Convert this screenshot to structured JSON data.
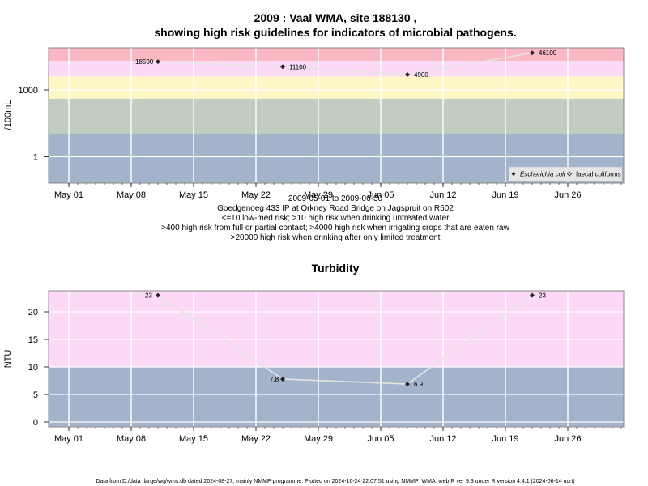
{
  "header": {
    "title_line1": "2009 : Vaal WMA, site 188130 ,",
    "title_line2": "showing high risk guidelines for indicators of microbial pathogens."
  },
  "caption": {
    "lines": [
      "2009-05-01 to 2009-06-30",
      "Goedgenoeg 433 IP at Orkney Road Bridge on Jagspruit on R502",
      "<=10 low-med risk; >10 high risk when drinking untreated water",
      ">400 high risk from full or partial contact; >4000 high risk when irrigating crops that are eaten raw",
      ">20000 high risk when drinking after only limited treatment"
    ]
  },
  "footer": {
    "text": "Data from D:/data_large/wq/wms.db dated 2024-08-27, mainly NMMP programme. Plotted on 2024-10-24 22:07:51 using NMMP_WMA_web.R ver 9.3 under R version 4.4.1 (2024-06-14 ucrt)"
  },
  "colors": {
    "band_red": "#f9b8c2",
    "band_pink": "#fcd9f7",
    "band_yellow": "#fdf7c5",
    "band_grey": "#c2cdc2",
    "band_blue": "#a3b3cb",
    "grid": "#ffffff",
    "line": "#e4e4e4",
    "point": "#222222"
  },
  "chart_data": [
    {
      "type": "line",
      "title": "",
      "ylabel": "/100mL",
      "y_scale": "log",
      "x_tick_labels": [
        "May 01",
        "May 08",
        "May 15",
        "May 22",
        "May 29",
        "Jun 05",
        "Jun 12",
        "Jun 19",
        "Jun 26"
      ],
      "x_tick_dates": [
        "2009-05-01",
        "2009-05-08",
        "2009-05-15",
        "2009-05-22",
        "2009-05-29",
        "2009-06-05",
        "2009-06-12",
        "2009-06-19",
        "2009-06-26"
      ],
      "y_tick_labels": [
        "1",
        "1000"
      ],
      "y_tick_values": [
        1,
        1000
      ],
      "risk_bands": [
        {
          "from": 20000,
          "to": 100000,
          "color": "#f9b8c2"
        },
        {
          "from": 4000,
          "to": 20000,
          "color": "#fcd9f7"
        },
        {
          "from": 400,
          "to": 4000,
          "color": "#fdf7c5"
        },
        {
          "from": 10,
          "to": 400,
          "color": "#c2cdc2"
        },
        {
          "from": 0.05,
          "to": 10,
          "color": "#a3b3cb"
        }
      ],
      "series": [
        {
          "name": "Escherichia coli",
          "marker": "filled-diamond",
          "x": [
            "2009-05-11",
            "2009-05-25",
            "2009-06-08",
            "2009-06-22"
          ],
          "y": [
            18500,
            11100,
            4900,
            46100
          ],
          "labels": [
            "18500",
            "11100",
            "4900",
            "46100"
          ]
        },
        {
          "name": "faecal coliforms",
          "marker": "open-diamond",
          "x": [],
          "y": []
        }
      ],
      "legend": {
        "position": "bottom-right"
      }
    },
    {
      "type": "line",
      "title": "Turbidity",
      "ylabel": "NTU",
      "y_scale": "linear",
      "ylim": [
        -0.8,
        24
      ],
      "x_tick_labels": [
        "May 01",
        "May 08",
        "May 15",
        "May 22",
        "May 29",
        "Jun 05",
        "Jun 12",
        "Jun 19",
        "Jun 26"
      ],
      "x_tick_dates": [
        "2009-05-01",
        "2009-05-08",
        "2009-05-15",
        "2009-05-22",
        "2009-05-29",
        "2009-06-05",
        "2009-06-12",
        "2009-06-19",
        "2009-06-26"
      ],
      "y_tick_labels": [
        "0",
        "5",
        "10",
        "15",
        "20"
      ],
      "y_tick_values": [
        0,
        5,
        10,
        15,
        20
      ],
      "risk_bands": [
        {
          "from": 10,
          "to": 24,
          "color": "#fcd9f7"
        },
        {
          "from": -0.8,
          "to": 10,
          "color": "#a3b3cb"
        }
      ],
      "series": [
        {
          "marker": "filled-diamond",
          "x": [
            "2009-05-11",
            "2009-05-25",
            "2009-06-08",
            "2009-06-22"
          ],
          "y": [
            23,
            7.8,
            6.9,
            23
          ],
          "labels": [
            "23",
            "7.8",
            "6.9",
            "23"
          ]
        }
      ]
    }
  ]
}
